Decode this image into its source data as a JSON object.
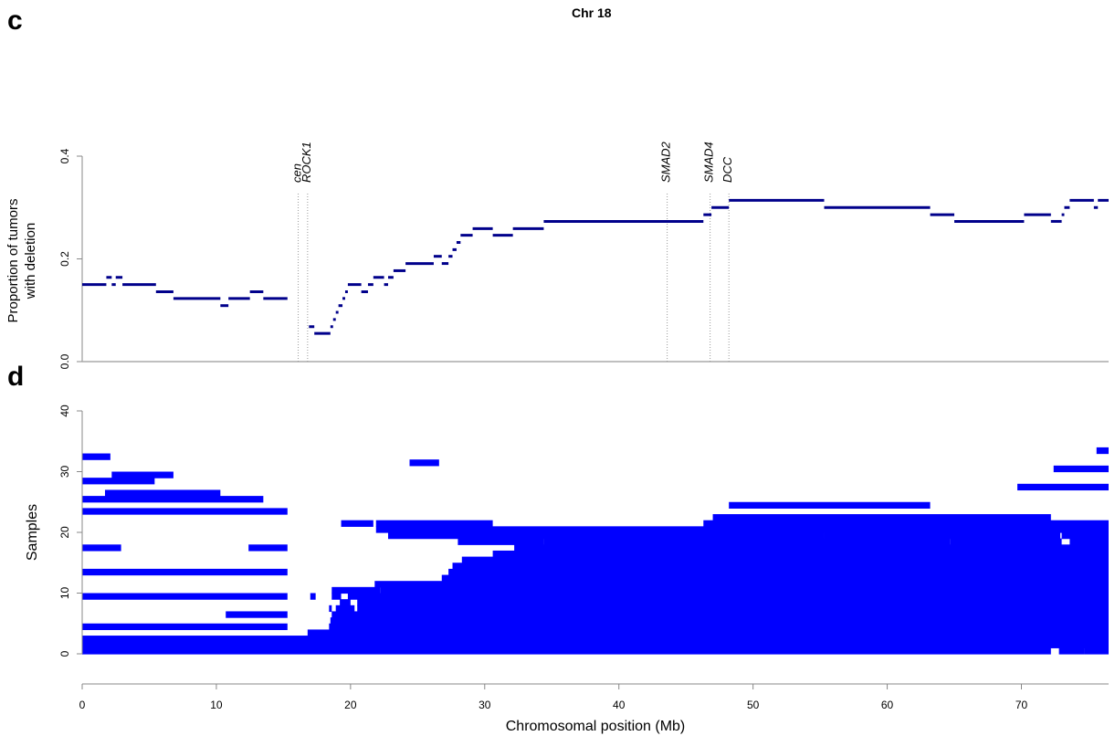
{
  "figure": {
    "title": "Chr 18",
    "panel_c": "c",
    "panel_d": "d"
  },
  "chart_data": [
    {
      "type": "line",
      "title": "Chr 18",
      "xlabel": "",
      "ylabel_line1": "Proportion of tumors",
      "ylabel_line2": "with deletion",
      "xlim": [
        0,
        76.5
      ],
      "ylim": [
        0,
        0.4
      ],
      "yticks": [
        "0.0",
        "0.2",
        "0.4"
      ],
      "grid": false,
      "markers": [
        {
          "name": "cen",
          "x": 16.1
        },
        {
          "name": "ROCK1",
          "x": 16.8
        },
        {
          "name": "SMAD2",
          "x": 43.6
        },
        {
          "name": "SMAD4",
          "x": 46.8
        },
        {
          "name": "DCC",
          "x": 48.2
        }
      ],
      "segments": [
        [
          0,
          1.8,
          0.15
        ],
        [
          1.8,
          2.2,
          0.164
        ],
        [
          2.2,
          2.5,
          0.15
        ],
        [
          2.5,
          3.0,
          0.164
        ],
        [
          3.0,
          5.5,
          0.15
        ],
        [
          5.5,
          6.8,
          0.136
        ],
        [
          6.8,
          10.3,
          0.123
        ],
        [
          10.3,
          10.9,
          0.109
        ],
        [
          10.9,
          12.5,
          0.123
        ],
        [
          12.5,
          13.5,
          0.136
        ],
        [
          13.5,
          15.3,
          0.123
        ],
        [
          16.9,
          17.3,
          0.068
        ],
        [
          17.3,
          18.5,
          0.055
        ],
        [
          18.5,
          18.7,
          0.068
        ],
        [
          18.7,
          18.9,
          0.082
        ],
        [
          18.9,
          19.1,
          0.096
        ],
        [
          19.1,
          19.4,
          0.109
        ],
        [
          19.4,
          19.6,
          0.123
        ],
        [
          19.6,
          19.8,
          0.136
        ],
        [
          19.8,
          20.8,
          0.15
        ],
        [
          20.8,
          21.3,
          0.136
        ],
        [
          21.3,
          21.7,
          0.15
        ],
        [
          21.7,
          22.5,
          0.164
        ],
        [
          22.5,
          22.8,
          0.15
        ],
        [
          22.8,
          23.2,
          0.164
        ],
        [
          23.2,
          24.1,
          0.177
        ],
        [
          24.1,
          26.2,
          0.191
        ],
        [
          26.2,
          26.8,
          0.205
        ],
        [
          26.8,
          27.3,
          0.191
        ],
        [
          27.3,
          27.6,
          0.205
        ],
        [
          27.6,
          27.9,
          0.218
        ],
        [
          27.9,
          28.2,
          0.232
        ],
        [
          28.2,
          29.1,
          0.246
        ],
        [
          29.1,
          30.6,
          0.259
        ],
        [
          30.6,
          32.1,
          0.246
        ],
        [
          32.1,
          34.4,
          0.259
        ],
        [
          34.4,
          46.3,
          0.273
        ],
        [
          46.3,
          46.9,
          0.286
        ],
        [
          46.9,
          48.2,
          0.3
        ],
        [
          48.2,
          55.3,
          0.314
        ],
        [
          55.3,
          63.2,
          0.3
        ],
        [
          63.2,
          65.0,
          0.286
        ],
        [
          65.0,
          70.2,
          0.273
        ],
        [
          70.2,
          72.2,
          0.286
        ],
        [
          72.2,
          73.0,
          0.273
        ],
        [
          73.0,
          73.2,
          0.286
        ],
        [
          73.2,
          73.6,
          0.3
        ],
        [
          73.6,
          75.4,
          0.314
        ],
        [
          75.4,
          75.7,
          0.3
        ],
        [
          75.7,
          76.5,
          0.314
        ]
      ]
    },
    {
      "type": "heatmap",
      "xlabel": "Chromosomal position (Mb)",
      "ylabel": "Samples",
      "xlim": [
        0,
        76.5
      ],
      "ylim": [
        0,
        40
      ],
      "xticks": [
        "0",
        "10",
        "20",
        "30",
        "40",
        "50",
        "60",
        "70"
      ],
      "yticks": [
        "0",
        "10",
        "20",
        "30",
        "40"
      ],
      "fill_color": "#0000ff",
      "rows": [
        {
          "sample": 0,
          "spans": [
            [
              0,
              72.2
            ],
            [
              72.8,
              74.7
            ],
            [
              74.7,
              76.5
            ]
          ]
        },
        {
          "sample": 1,
          "spans": [
            [
              0,
              76.5
            ]
          ]
        },
        {
          "sample": 2,
          "spans": [
            [
              0,
              76.5
            ]
          ]
        },
        {
          "sample": 3,
          "spans": [
            [
              16.8,
              76.5
            ]
          ]
        },
        {
          "sample": 4,
          "spans": [
            [
              0,
              15.3
            ],
            [
              18.4,
              76.5
            ]
          ]
        },
        {
          "sample": 5,
          "spans": [
            [
              18.5,
              76.5
            ]
          ]
        },
        {
          "sample": 6,
          "spans": [
            [
              10.7,
              15.3
            ],
            [
              18.6,
              76.5
            ]
          ]
        },
        {
          "sample": 7,
          "spans": [
            [
              18.4,
              18.6
            ],
            [
              18.9,
              20.3
            ],
            [
              20.5,
              76.5
            ]
          ]
        },
        {
          "sample": 8,
          "spans": [
            [
              19.2,
              20.0
            ],
            [
              20.5,
              76.5
            ]
          ]
        },
        {
          "sample": 9,
          "spans": [
            [
              0,
              15.3
            ],
            [
              17.0,
              17.4
            ],
            [
              18.6,
              19.3
            ],
            [
              19.8,
              76.5
            ]
          ]
        },
        {
          "sample": 10,
          "spans": [
            [
              18.6,
              22.2
            ],
            [
              22.2,
              76.5
            ]
          ]
        },
        {
          "sample": 11,
          "spans": [
            [
              21.8,
              76.5
            ]
          ]
        },
        {
          "sample": 12,
          "spans": [
            [
              26.8,
              76.5
            ]
          ]
        },
        {
          "sample": 13,
          "spans": [
            [
              0,
              15.3
            ],
            [
              27.3,
              76.5
            ]
          ]
        },
        {
          "sample": 14,
          "spans": [
            [
              27.6,
              76.5
            ]
          ]
        },
        {
          "sample": 15,
          "spans": [
            [
              28.3,
              76.5
            ]
          ]
        },
        {
          "sample": 16,
          "spans": [
            [
              30.6,
              76.5
            ]
          ]
        },
        {
          "sample": 17,
          "spans": [
            [
              0,
              2.9
            ],
            [
              12.4,
              15.3
            ],
            [
              32.2,
              76.5
            ]
          ]
        },
        {
          "sample": 18,
          "spans": [
            [
              28.0,
              34.4
            ],
            [
              34.4,
              64.7
            ],
            [
              64.7,
              73.0
            ],
            [
              73.6,
              76.5
            ]
          ]
        },
        {
          "sample": 19,
          "spans": [
            [
              22.8,
              55.3
            ],
            [
              55.3,
              72.9
            ],
            [
              73.0,
              76.5
            ]
          ]
        },
        {
          "sample": 20,
          "spans": [
            [
              21.9,
              76.5
            ]
          ]
        },
        {
          "sample": 21,
          "spans": [
            [
              19.3,
              21.7
            ],
            [
              21.9,
              30.6
            ],
            [
              46.3,
              76.5
            ]
          ]
        },
        {
          "sample": 22,
          "spans": [
            [
              47.0,
              72.2
            ]
          ]
        },
        {
          "sample": 23,
          "spans": [
            [
              0,
              15.3
            ]
          ]
        },
        {
          "sample": 24,
          "spans": [
            [
              48.2,
              63.2
            ]
          ]
        },
        {
          "sample": 25,
          "spans": [
            [
              0,
              13.5
            ]
          ]
        },
        {
          "sample": 26,
          "spans": [
            [
              1.7,
              10.3
            ]
          ]
        },
        {
          "sample": 27,
          "spans": [
            [
              69.7,
              76.5
            ]
          ]
        },
        {
          "sample": 28,
          "spans": [
            [
              0,
              5.4
            ]
          ]
        },
        {
          "sample": 29,
          "spans": [
            [
              2.2,
              6.8
            ]
          ]
        },
        {
          "sample": 30,
          "spans": [
            [
              72.4,
              76.5
            ]
          ]
        },
        {
          "sample": 31,
          "spans": [
            [
              24.4,
              26.6
            ]
          ]
        },
        {
          "sample": 32,
          "spans": [
            [
              0,
              2.1
            ]
          ]
        },
        {
          "sample": 33,
          "spans": [
            [
              75.6,
              76.5
            ]
          ]
        }
      ]
    }
  ]
}
